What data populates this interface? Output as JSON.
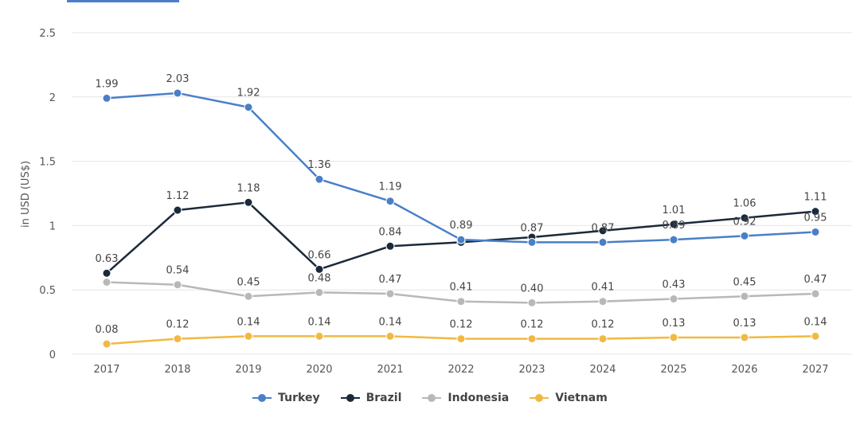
{
  "chart_data": {
    "type": "line",
    "xlabel": "",
    "ylabel": "in USD (US$)",
    "ylim": [
      0,
      2.5
    ],
    "yticks": [
      "0",
      "0.5",
      "1",
      "1.5",
      "2",
      "2.5"
    ],
    "x": [
      "2017",
      "2018",
      "2019",
      "2020",
      "2021",
      "2022",
      "2023",
      "2024",
      "2025",
      "2026",
      "2027"
    ],
    "grid": true,
    "legend_position": "bottom",
    "series": [
      {
        "name": "Turkey",
        "color": "#4a7fc8",
        "values": [
          1.99,
          2.03,
          1.92,
          1.36,
          1.19,
          0.89,
          0.87,
          0.87,
          0.89,
          0.92,
          0.95
        ],
        "labels": [
          "1.99",
          "2.03",
          "1.92",
          "1.36",
          "1.19",
          "0.89",
          "0.87",
          "0.87",
          "0.89",
          "0.92",
          "0.95"
        ]
      },
      {
        "name": "Brazil",
        "color": "#1b2a3a",
        "values": [
          0.63,
          1.12,
          1.18,
          0.66,
          0.84,
          0.87,
          0.91,
          0.96,
          1.01,
          1.06,
          1.11
        ],
        "labels": [
          "0.63",
          "1.12",
          "1.18",
          "0.66",
          "0.84",
          "",
          "",
          "",
          "1.01",
          "1.06",
          "1.11"
        ]
      },
      {
        "name": "Indonesia",
        "color": "#b8b8b8",
        "values": [
          0.56,
          0.54,
          0.45,
          0.48,
          0.47,
          0.41,
          0.4,
          0.41,
          0.43,
          0.45,
          0.47
        ],
        "labels": [
          "",
          "0.54",
          "0.45",
          "0.48",
          "0.47",
          "0.41",
          "0.40",
          "0.41",
          "0.43",
          "0.45",
          "0.47"
        ]
      },
      {
        "name": "Vietnam",
        "color": "#f0b942",
        "values": [
          0.08,
          0.12,
          0.14,
          0.14,
          0.14,
          0.12,
          0.12,
          0.12,
          0.13,
          0.13,
          0.14
        ],
        "labels": [
          "0.08",
          "0.12",
          "0.14",
          "0.14",
          "0.14",
          "0.12",
          "0.12",
          "0.12",
          "0.13",
          "0.13",
          "0.14"
        ]
      }
    ]
  }
}
